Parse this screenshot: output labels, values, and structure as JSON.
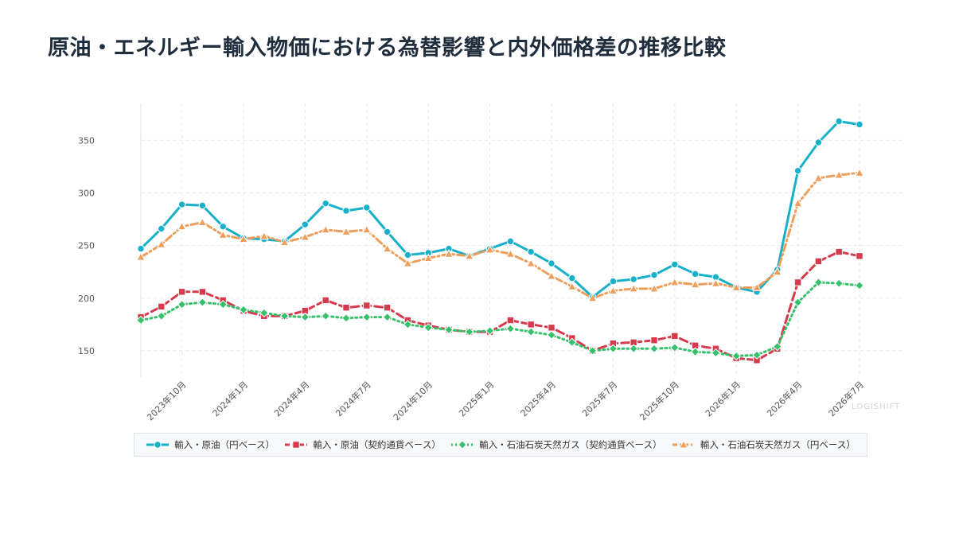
{
  "title": "原油・エネルギー輸入物価における為替影響と内外価格差の推移比較",
  "watermark": "LOGISHIFT",
  "chart_data": {
    "type": "line",
    "title": "原油・エネルギー輸入物価における為替影響と内外価格差の推移比較",
    "x_tick_labels": [
      "2023年10月",
      "2024年1月",
      "2024年4月",
      "2024年7月",
      "2024年10月",
      "2025年1月",
      "2025年4月",
      "2025年7月",
      "2025年10月",
      "2026年1月",
      "2026年4月",
      "2026年7月"
    ],
    "x_tick_index": [
      2,
      5,
      8,
      11,
      14,
      17,
      20,
      23,
      26,
      29,
      32,
      35
    ],
    "ylim": [
      125,
      385
    ],
    "yticks": [
      150,
      200,
      250,
      300,
      350
    ],
    "grid": true,
    "legend_position": "bottom",
    "series": [
      {
        "name": "輸入・原油（円ベース）",
        "color": "#17b0c8",
        "marker": "circle",
        "dash": "solid",
        "values": [
          247,
          266,
          289,
          288,
          268,
          257,
          256,
          254,
          270,
          290,
          283,
          286,
          263,
          241,
          243,
          247,
          240,
          247,
          254,
          244,
          233,
          219,
          201,
          216,
          218,
          222,
          232,
          223,
          220,
          210,
          206,
          227,
          321,
          348,
          368,
          365
        ]
      },
      {
        "name": "輸入・原油（契約通貨ベース）",
        "color": "#d63a4c",
        "marker": "square",
        "dash": "dashed",
        "values": [
          182,
          192,
          206,
          206,
          198,
          188,
          183,
          183,
          188,
          198,
          191,
          193,
          191,
          179,
          174,
          170,
          168,
          168,
          179,
          175,
          172,
          162,
          150,
          157,
          158,
          160,
          164,
          155,
          152,
          143,
          141,
          152,
          215,
          235,
          244,
          240
        ]
      },
      {
        "name": "輸入・石油石炭天然ガス（契約通貨ベース）",
        "color": "#35c06a",
        "marker": "diamond",
        "dash": "dotted",
        "values": [
          179,
          183,
          194,
          196,
          194,
          189,
          186,
          183,
          182,
          183,
          181,
          182,
          182,
          175,
          172,
          170,
          168,
          169,
          171,
          168,
          165,
          158,
          150,
          152,
          152,
          152,
          153,
          149,
          148,
          145,
          146,
          154,
          196,
          215,
          214,
          212
        ]
      },
      {
        "name": "輸入・石油石炭天然ガス（円ベース）",
        "color": "#ec9e5a",
        "marker": "triangle",
        "dash": "dashdot",
        "values": [
          239,
          251,
          268,
          272,
          260,
          256,
          259,
          253,
          258,
          265,
          263,
          265,
          247,
          233,
          238,
          242,
          240,
          246,
          242,
          233,
          221,
          211,
          200,
          207,
          209,
          209,
          215,
          213,
          214,
          210,
          210,
          225,
          290,
          314,
          317,
          319
        ]
      }
    ]
  }
}
